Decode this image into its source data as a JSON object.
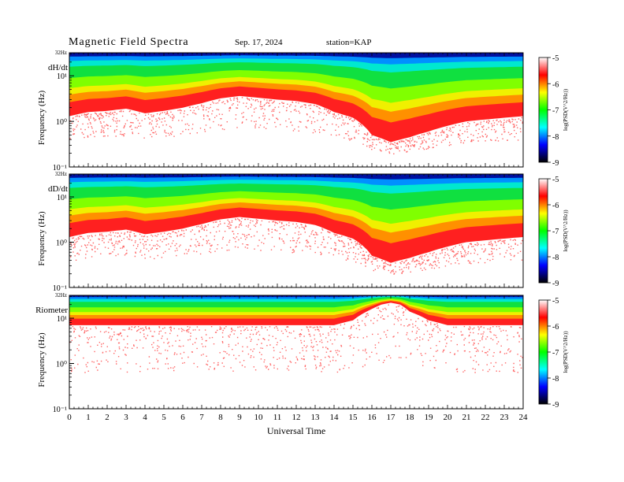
{
  "header": {
    "title": "Magnetic  Field  Spectra",
    "date": "Sep. 17, 2024",
    "station": "station=KAP"
  },
  "chart_data": [
    {
      "type": "heatmap",
      "panel_label": "dH/dt",
      "ylabel": "Frequency  (Hz)",
      "y_scale": "log",
      "ylim": [
        0.1,
        32
      ],
      "y_ticks": [
        "10¹",
        "10⁰",
        "10⁻¹"
      ],
      "top_tick": "32Hz",
      "colorbar": {
        "label": "log(PSD(V^2/Hz))",
        "range": [
          -9,
          -5
        ],
        "ticks": [
          "-5",
          "-6",
          "-7",
          "-8",
          "-9"
        ],
        "colors": [
          "#ffffff",
          "#ff0000",
          "#ffff00",
          "#00ff00",
          "#00ffff",
          "#0000ff",
          "#000000"
        ]
      },
      "red_edge_profile_hz": {
        "hours": [
          0,
          1,
          2,
          3,
          4,
          5,
          6,
          7,
          8,
          9,
          10,
          11,
          12,
          13,
          14,
          15,
          16,
          17,
          18,
          19,
          20,
          21,
          22,
          23,
          24
        ],
        "frequency": [
          1.3,
          1.6,
          1.7,
          1.9,
          1.5,
          1.7,
          2.0,
          2.5,
          3.2,
          3.6,
          3.3,
          3.0,
          2.8,
          2.4,
          1.6,
          1.2,
          0.5,
          0.35,
          0.45,
          0.6,
          0.8,
          1.0,
          1.1,
          1.2,
          1.3
        ]
      }
    },
    {
      "type": "heatmap",
      "panel_label": "dD/dt",
      "ylabel": "Frequency  (Hz)",
      "y_scale": "log",
      "ylim": [
        0.1,
        32
      ],
      "y_ticks": [
        "10¹",
        "10⁰",
        "10⁻¹"
      ],
      "top_tick": "32Hz",
      "colorbar": {
        "label": "log(PSD(V^2/Hz))",
        "range": [
          -9,
          -5
        ],
        "ticks": [
          "-5",
          "-6",
          "-7",
          "-8",
          "-9"
        ],
        "colors": [
          "#ffffff",
          "#ff0000",
          "#ffff00",
          "#00ff00",
          "#00ffff",
          "#0000ff",
          "#000000"
        ]
      },
      "red_edge_profile_hz": {
        "hours": [
          0,
          1,
          2,
          3,
          4,
          5,
          6,
          7,
          8,
          9,
          10,
          11,
          12,
          13,
          14,
          15,
          16,
          17,
          18,
          19,
          20,
          21,
          22,
          23,
          24
        ],
        "frequency": [
          1.3,
          1.6,
          1.7,
          1.9,
          1.5,
          1.7,
          2.0,
          2.5,
          3.2,
          3.6,
          3.3,
          3.0,
          2.8,
          2.4,
          1.6,
          1.2,
          0.5,
          0.35,
          0.45,
          0.6,
          0.8,
          1.0,
          1.1,
          1.2,
          1.3
        ]
      }
    },
    {
      "type": "heatmap",
      "panel_label": "Riometer",
      "ylabel": "Frequency  (Hz)",
      "y_scale": "log",
      "ylim": [
        0.1,
        32
      ],
      "y_ticks": [
        "10¹",
        "10⁰",
        "10⁻¹"
      ],
      "top_tick": "32Hz",
      "colorbar": {
        "label": "log(PSD(V^2/Hz))",
        "range": [
          -9,
          -5
        ],
        "ticks": [
          "-5",
          "-6",
          "-7",
          "-8",
          "-9"
        ],
        "colors": [
          "#ffffff",
          "#ff0000",
          "#ffff00",
          "#00ff00",
          "#00ffff",
          "#0000ff",
          "#000000"
        ]
      },
      "red_edge_profile_hz": {
        "hours": [
          0,
          2,
          4,
          6,
          8,
          10,
          12,
          14,
          15,
          16,
          16.5,
          17,
          17.5,
          18,
          19,
          20,
          22,
          24
        ],
        "frequency": [
          7,
          7,
          7,
          7,
          7,
          7,
          7,
          7,
          9,
          16,
          20,
          22,
          20,
          14,
          9,
          7,
          7,
          7
        ]
      }
    }
  ],
  "x_axis": {
    "label": "Universal  Time",
    "ticks": [
      "0",
      "1",
      "2",
      "3",
      "4",
      "5",
      "6",
      "7",
      "8",
      "9",
      "10",
      "11",
      "12",
      "13",
      "14",
      "15",
      "16",
      "17",
      "18",
      "19",
      "20",
      "21",
      "22",
      "23",
      "24"
    ],
    "range": [
      0,
      24
    ]
  }
}
